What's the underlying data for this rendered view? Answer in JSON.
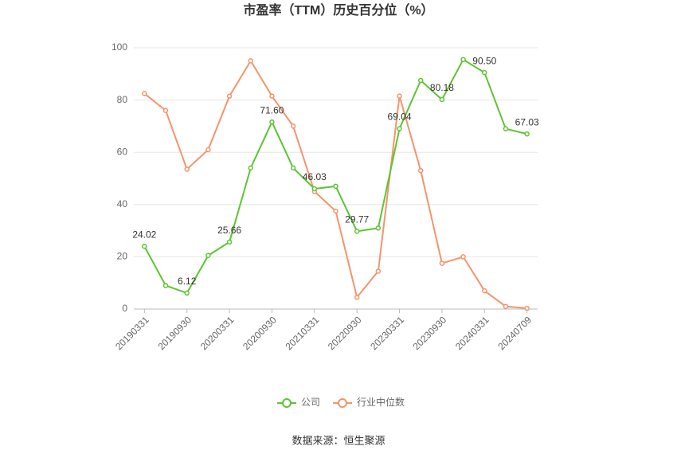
{
  "chart_data": {
    "type": "line",
    "title": "市盈率（TTM）历史百分位（%）",
    "source": "数据来源：恒生聚源",
    "categories": [
      "20190331",
      null,
      "20190930",
      null,
      "20200331",
      null,
      "20200930",
      null,
      "20210331",
      null,
      "20220930",
      null,
      "20230331",
      null,
      "20230930",
      null,
      "20240331",
      null,
      "20240709"
    ],
    "series": [
      {
        "name": "公司",
        "color": "#5cc531",
        "values": [
          24.02,
          9,
          6.12,
          20.5,
          25.66,
          54,
          71.6,
          54,
          46.03,
          47,
          29.77,
          31,
          69.04,
          87.5,
          80.18,
          95.5,
          90.5,
          69,
          67.03
        ],
        "value_labels": [
          "24.02",
          null,
          "6.12",
          null,
          "25.66",
          null,
          "71.60",
          null,
          "46.03",
          null,
          "29.77",
          null,
          "69.04",
          null,
          "80.18",
          null,
          "90.50",
          null,
          "67.03"
        ]
      },
      {
        "name": "行业中位数",
        "color": "#f4946a",
        "values": [
          82.5,
          76,
          53.5,
          61,
          81.5,
          95,
          81.5,
          70,
          45,
          37.5,
          4.5,
          14.5,
          81.5,
          53,
          17.5,
          20,
          7,
          1,
          0.3
        ]
      }
    ],
    "ylim": [
      0,
      100
    ],
    "yticks": [
      0,
      20,
      40,
      60,
      80,
      100
    ],
    "grid": true,
    "legend": "bottom"
  }
}
